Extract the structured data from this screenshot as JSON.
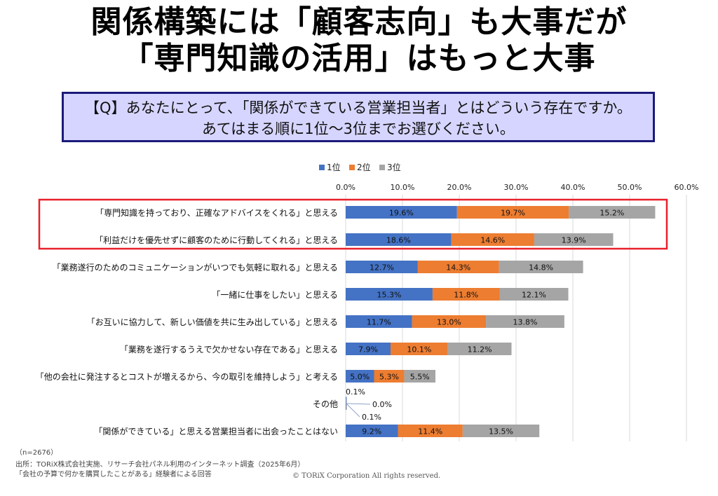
{
  "headline": {
    "line1": "関係構築には「顧客志向」も大事だが",
    "line2": "「専門知識の活用」はもっと大事"
  },
  "question": {
    "line1": "【Q】あなたにとって、「関係ができている営業担当者」とはどういう存在ですか。",
    "line2": "あてはまる順に1位〜3位までお選びください。"
  },
  "chart_data": {
    "type": "bar",
    "orientation": "horizontal-stacked",
    "x_ticks": [
      "0.0%",
      "10.0%",
      "20.0%",
      "30.0%",
      "40.0%",
      "50.0%",
      "60.0%"
    ],
    "xlim": [
      0,
      60
    ],
    "categories": [
      "「専門知識を持っており、正確なアドバイスをくれる」と思える",
      "「利益だけを優先せずに顧客のために行動してくれる」と思える",
      "「業務遂行のためのコミュニケーションがいつでも気軽に取れる」と思える",
      "「一緒に仕事をしたい」と思える",
      "「お互いに協力して、新しい価値を共に生み出している」と思える",
      "「業務を遂行するうえで欠かせない存在である」と思える",
      "「他の会社に発注するとコストが増えるから、今の取引を維持しよう」と考える",
      "その他",
      "「関係ができている」と思える営業担当者に出会ったことはない"
    ],
    "series": [
      {
        "name": "1位",
        "color": "#4472c4",
        "values": [
          19.6,
          18.6,
          12.7,
          15.3,
          11.7,
          7.9,
          5.0,
          0.1,
          9.2
        ],
        "labels": [
          "19.6%",
          "18.6%",
          "12.7%",
          "15.3%",
          "11.7%",
          "7.9%",
          "5.0%",
          "0.1%",
          "9.2%"
        ]
      },
      {
        "name": "2位",
        "color": "#ed7d31",
        "values": [
          19.7,
          14.6,
          14.3,
          11.8,
          13.0,
          10.1,
          5.3,
          0.0,
          11.4
        ],
        "labels": [
          "19.7%",
          "14.6%",
          "14.3%",
          "11.8%",
          "13.0%",
          "10.1%",
          "5.3%",
          "0.0%",
          "11.4%"
        ]
      },
      {
        "name": "3位",
        "color": "#a5a5a5",
        "values": [
          15.2,
          13.9,
          14.8,
          12.1,
          13.8,
          11.2,
          5.5,
          0.1,
          13.5
        ],
        "labels": [
          "15.2%",
          "13.9%",
          "14.8%",
          "12.1%",
          "13.8%",
          "11.2%",
          "5.5%",
          "0.1%",
          "13.5%"
        ]
      }
    ],
    "highlighted_categories": [
      0,
      1
    ],
    "highlight_color": "#e8202a",
    "legend_position": "top",
    "grid": true
  },
  "footer": {
    "n": "（n=2676）",
    "source": "出所：TORiX株式会社実施、リサーチ会社パネル利用のインターネット調査（2025年6月）",
    "note": "「会社の予算で何かを購買したことがある」経験者による回答",
    "copyright": "© TORiX Corporation All rights reserved."
  }
}
